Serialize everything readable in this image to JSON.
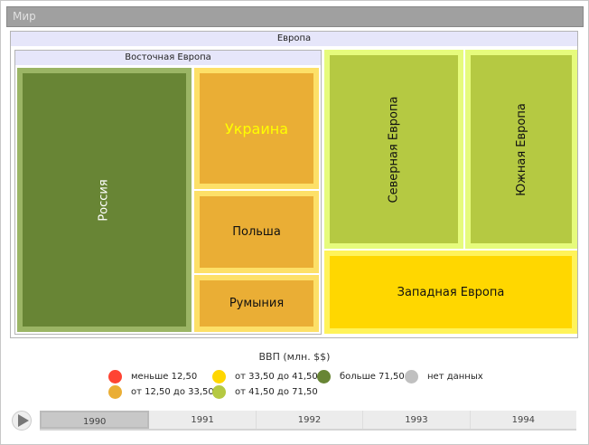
{
  "title": "Мир",
  "groups": {
    "europe": "Европа",
    "eastern": "Восточная Европа"
  },
  "cells": {
    "russia": "Россия",
    "ukraine": "Украина",
    "poland": "Польша",
    "romania": "Румыния",
    "north": "Северная Европа",
    "south": "Южная Европа",
    "west": "Западная Европа"
  },
  "legend": {
    "title": "ВВП (млн. $$)",
    "items": [
      {
        "label": "меньше 12,50",
        "color": "#ff4433"
      },
      {
        "label": "от 12,50 до 33,50",
        "color": "#eaae35"
      },
      {
        "label": "от 33,50 до 41,50",
        "color": "#ffd700"
      },
      {
        "label": "от 41,50 до 71,50",
        "color": "#b5c942"
      },
      {
        "label": "больше 71,50",
        "color": "#688535"
      },
      {
        "label": "нет данных",
        "color": "#c0c0c0"
      }
    ]
  },
  "timeline": {
    "years": [
      "1990",
      "1991",
      "1992",
      "1993",
      "1994"
    ],
    "selected": "1990"
  }
}
